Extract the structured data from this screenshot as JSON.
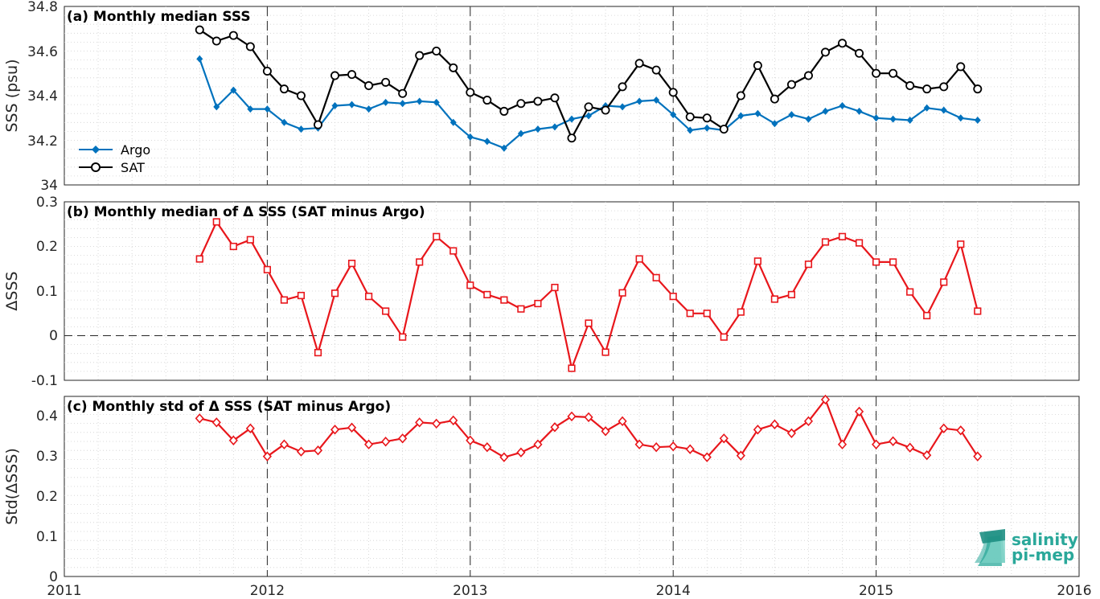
{
  "colors": {
    "argo": "#0072BD",
    "sat": "#000000",
    "delta": "#E8161B",
    "logo": "#2aa89a"
  },
  "logo": {
    "line1": "salinity",
    "line2": "pi-mep",
    "icon": "pi-mep-wave-icon"
  },
  "x_axis": {
    "ticks": [
      "2011",
      "2012",
      "2013",
      "2014",
      "2015",
      "2016"
    ],
    "range": [
      2011,
      2016
    ]
  },
  "chart_data": [
    {
      "type": "line",
      "title": "(a) Monthly median SSS",
      "ylabel": "SSS (psu)",
      "ylim": [
        34,
        34.8
      ],
      "yticks": [
        "34",
        "34.2",
        "34.4",
        "34.6",
        "34.8"
      ],
      "legend_placement": "lower-left",
      "grid": true,
      "x": [
        "2011-09",
        "2011-10",
        "2011-11",
        "2011-12",
        "2012-01",
        "2012-02",
        "2012-03",
        "2012-04",
        "2012-05",
        "2012-06",
        "2012-07",
        "2012-08",
        "2012-09",
        "2012-10",
        "2012-11",
        "2012-12",
        "2013-01",
        "2013-02",
        "2013-03",
        "2013-04",
        "2013-05",
        "2013-06",
        "2013-07",
        "2013-08",
        "2013-09",
        "2013-10",
        "2013-11",
        "2013-12",
        "2014-01",
        "2014-02",
        "2014-03",
        "2014-04",
        "2014-05",
        "2014-06",
        "2014-07",
        "2014-08",
        "2014-09",
        "2014-10",
        "2014-11",
        "2014-12",
        "2015-01",
        "2015-02",
        "2015-03",
        "2015-04",
        "2015-05",
        "2015-06",
        "2015-07"
      ],
      "series": [
        {
          "name": "Argo",
          "marker": "filled-diamond",
          "values": [
            34.565,
            34.35,
            34.425,
            34.34,
            34.34,
            34.28,
            34.25,
            34.255,
            34.355,
            34.36,
            34.34,
            34.37,
            34.365,
            34.375,
            34.37,
            34.28,
            34.215,
            34.195,
            34.165,
            34.23,
            34.25,
            34.26,
            34.295,
            34.31,
            34.355,
            34.35,
            34.375,
            34.38,
            34.315,
            34.245,
            34.255,
            34.245,
            34.31,
            34.32,
            34.275,
            34.315,
            34.295,
            34.33,
            34.355,
            34.33,
            34.3,
            34.295,
            34.29,
            34.345,
            34.335,
            34.3,
            34.29
          ]
        },
        {
          "name": "SAT",
          "marker": "open-circle",
          "values": [
            34.695,
            34.645,
            34.67,
            34.62,
            34.51,
            34.43,
            34.4,
            34.27,
            34.49,
            34.495,
            34.445,
            34.46,
            34.41,
            34.58,
            34.6,
            34.525,
            34.415,
            34.38,
            34.33,
            34.365,
            34.375,
            34.39,
            34.21,
            34.35,
            34.335,
            34.44,
            34.545,
            34.515,
            34.415,
            34.305,
            34.3,
            34.25,
            34.4,
            34.535,
            34.385,
            34.45,
            34.49,
            34.595,
            34.635,
            34.59,
            34.5,
            34.5,
            34.445,
            34.43,
            34.44,
            34.53,
            34.43
          ]
        }
      ]
    },
    {
      "type": "line",
      "title": "(b) Monthly median of Δ SSS (SAT minus Argo)",
      "ylabel": "ΔSSS",
      "ylim": [
        -0.1,
        0.3
      ],
      "yticks": [
        "-0.1",
        "0",
        "0.1",
        "0.2",
        "0.3"
      ],
      "grid": true,
      "zero_line": true,
      "x": [
        "2011-09",
        "2011-10",
        "2011-11",
        "2011-12",
        "2012-01",
        "2012-02",
        "2012-03",
        "2012-04",
        "2012-05",
        "2012-06",
        "2012-07",
        "2012-08",
        "2012-09",
        "2012-10",
        "2012-11",
        "2012-12",
        "2013-01",
        "2013-02",
        "2013-03",
        "2013-04",
        "2013-05",
        "2013-06",
        "2013-07",
        "2013-08",
        "2013-09",
        "2013-10",
        "2013-11",
        "2013-12",
        "2014-01",
        "2014-02",
        "2014-03",
        "2014-04",
        "2014-05",
        "2014-06",
        "2014-07",
        "2014-08",
        "2014-09",
        "2014-10",
        "2014-11",
        "2014-12",
        "2015-01",
        "2015-02",
        "2015-03",
        "2015-04",
        "2015-05",
        "2015-06",
        "2015-07"
      ],
      "series": [
        {
          "marker": "open-square",
          "values": [
            0.172,
            0.255,
            0.2,
            0.215,
            0.148,
            0.08,
            0.09,
            -0.038,
            0.095,
            0.162,
            0.088,
            0.055,
            -0.003,
            0.165,
            0.222,
            0.19,
            0.113,
            0.092,
            0.08,
            0.06,
            0.072,
            0.108,
            -0.073,
            0.028,
            -0.037,
            0.096,
            0.172,
            0.13,
            0.088,
            0.05,
            0.05,
            -0.003,
            0.053,
            0.167,
            0.082,
            0.092,
            0.16,
            0.21,
            0.222,
            0.208,
            0.165,
            0.165,
            0.098,
            0.045,
            0.12,
            0.205,
            0.055
          ]
        }
      ]
    },
    {
      "type": "line",
      "title": "(c) Monthly std of Δ SSS (SAT minus Argo)",
      "ylabel": "Std(ΔSSS)",
      "ylim": [
        0,
        0.45
      ],
      "yticks": [
        "0",
        "0.1",
        "0.2",
        "0.3",
        "0.4"
      ],
      "grid": true,
      "x": [
        "2011-09",
        "2011-10",
        "2011-11",
        "2011-12",
        "2012-01",
        "2012-02",
        "2012-03",
        "2012-04",
        "2012-05",
        "2012-06",
        "2012-07",
        "2012-08",
        "2012-09",
        "2012-10",
        "2012-11",
        "2012-12",
        "2013-01",
        "2013-02",
        "2013-03",
        "2013-04",
        "2013-05",
        "2013-06",
        "2013-07",
        "2013-08",
        "2013-09",
        "2013-10",
        "2013-11",
        "2013-12",
        "2014-01",
        "2014-02",
        "2014-03",
        "2014-04",
        "2014-05",
        "2014-06",
        "2014-07",
        "2014-08",
        "2014-09",
        "2014-10",
        "2014-11",
        "2014-12",
        "2015-01",
        "2015-02",
        "2015-03",
        "2015-04",
        "2015-05",
        "2015-06",
        "2015-07"
      ],
      "series": [
        {
          "marker": "open-diamond",
          "values": [
            0.395,
            0.385,
            0.34,
            0.37,
            0.3,
            0.33,
            0.312,
            0.315,
            0.367,
            0.372,
            0.33,
            0.337,
            0.345,
            0.385,
            0.382,
            0.39,
            0.34,
            0.323,
            0.298,
            0.31,
            0.33,
            0.373,
            0.4,
            0.398,
            0.363,
            0.388,
            0.33,
            0.323,
            0.325,
            0.318,
            0.298,
            0.345,
            0.302,
            0.367,
            0.38,
            0.358,
            0.388,
            0.442,
            0.33,
            0.412,
            0.33,
            0.338,
            0.322,
            0.303,
            0.37,
            0.365,
            0.3
          ]
        }
      ]
    }
  ]
}
